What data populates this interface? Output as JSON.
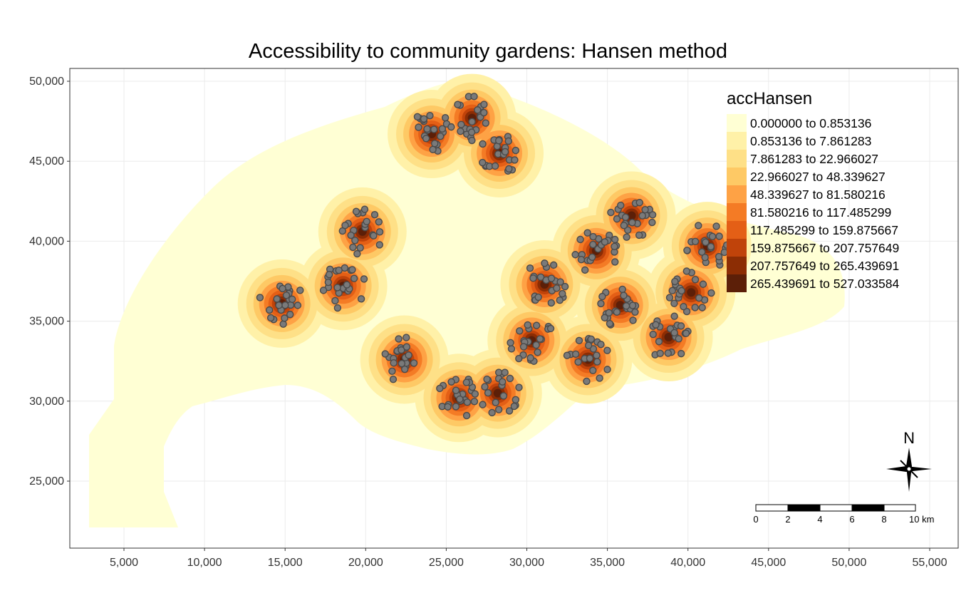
{
  "map": {
    "title": "Accessibility to community gardens: Hansen method",
    "x_axis": {
      "range": [
        2000,
        57000
      ],
      "ticks": [
        "5,000",
        "10,000",
        "15,000",
        "20,000",
        "25,000",
        "30,000",
        "35,000",
        "40,000",
        "45,000",
        "50,000",
        "55,000"
      ],
      "tick_values": [
        5000,
        10000,
        15000,
        20000,
        25000,
        30000,
        35000,
        40000,
        45000,
        50000,
        55000
      ]
    },
    "y_axis": {
      "range": [
        21000,
        51000
      ],
      "ticks": [
        "25,000",
        "30,000",
        "35,000",
        "40,000",
        "45,000",
        "50,000"
      ],
      "tick_values": [
        25000,
        30000,
        35000,
        40000,
        45000,
        50000
      ]
    },
    "legend": {
      "title": "accHansen",
      "placement": "top-right",
      "classes": [
        {
          "label": "0.000000 to 0.853136",
          "color": "#ffffd4"
        },
        {
          "label": "0.853136 to 7.861283",
          "color": "#fff1a8"
        },
        {
          "label": "7.861283 to 22.966027",
          "color": "#fee087"
        },
        {
          "label": "22.966027 to 48.339627",
          "color": "#fec965"
        },
        {
          "label": "48.339627 to 81.580216",
          "color": "#fea245"
        },
        {
          "label": "81.580216 to 117.485299",
          "color": "#f47b25"
        },
        {
          "label": "117.485299 to 159.875667",
          "color": "#e45f16"
        },
        {
          "label": "159.875667 to 207.757649",
          "color": "#c0430a"
        },
        {
          "label": "207.757649 to 265.439691",
          "color": "#8c2d04"
        },
        {
          "label": "265.439691 to 527.033584",
          "color": "#5c1f08"
        }
      ]
    },
    "compass": {
      "label": "N"
    },
    "scale_bar": {
      "labels": [
        "0",
        "2",
        "4",
        "6",
        "8",
        "10 km"
      ]
    },
    "point_color": "#7a7a7a",
    "point_stroke": "#4a4a4a",
    "clusters": [
      {
        "x": 19800,
        "y": 40600
      },
      {
        "x": 14800,
        "y": 36100
      },
      {
        "x": 18600,
        "y": 37200
      },
      {
        "x": 22400,
        "y": 32600
      },
      {
        "x": 25800,
        "y": 30200
      },
      {
        "x": 28300,
        "y": 45500
      },
      {
        "x": 24100,
        "y": 46700
      },
      {
        "x": 26600,
        "y": 47700
      },
      {
        "x": 31100,
        "y": 37300
      },
      {
        "x": 34300,
        "y": 39400
      },
      {
        "x": 36500,
        "y": 41600
      },
      {
        "x": 33800,
        "y": 32600
      },
      {
        "x": 38800,
        "y": 34000
      },
      {
        "x": 40200,
        "y": 36800
      },
      {
        "x": 41200,
        "y": 39700
      },
      {
        "x": 30300,
        "y": 33800
      },
      {
        "x": 35800,
        "y": 36000
      },
      {
        "x": 28200,
        "y": 30500
      }
    ]
  }
}
